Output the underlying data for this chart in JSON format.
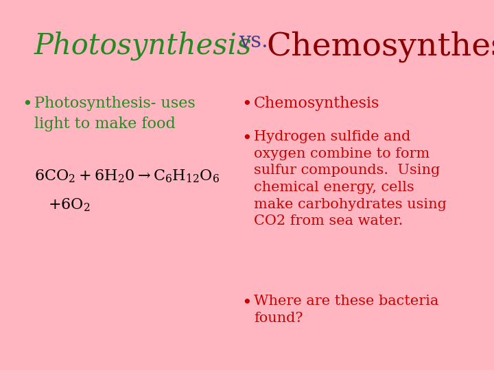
{
  "background_color": "#FFB6C1",
  "title_photo": "Photosynthesis",
  "title_vs": "vs.",
  "title_chemo": "Chemosynthesis",
  "title_photo_color": "#228B22",
  "title_vs_color": "#483D8B",
  "title_chemo_color": "#8B0000",
  "title_photo_fontsize": 30,
  "title_vs_fontsize": 22,
  "title_chemo_fontsize": 34,
  "left_bullet1_line1": "Photosynthesis- uses",
  "left_bullet1_line2": "light to make food",
  "left_bullet1_color": "#228B22",
  "equation_line1": "6CO",
  "equation_color": "#000000",
  "right_bullet1": "Chemosynthesis",
  "right_bullet1_color": "#CC0000",
  "right_bullet2_line1": "Hydrogen sulfide and",
  "right_bullet2_line2": "oxygen combine to form",
  "right_bullet2_line3": "sulfur compounds.  Using",
  "right_bullet2_line4": "chemical energy, cells",
  "right_bullet2_line5": "make carbohydrates using",
  "right_bullet2_line6": "CO2 from sea water.",
  "right_bullet2_color": "#CC0000",
  "right_bullet3_line1": "Where are these bacteria",
  "right_bullet3_line2": "found?",
  "right_bullet3_color": "#CC0000",
  "bullet_color_left": "#228B22",
  "bullet_color_right": "#CC0000",
  "body_fontsize": 16,
  "eq_fontsize": 16
}
